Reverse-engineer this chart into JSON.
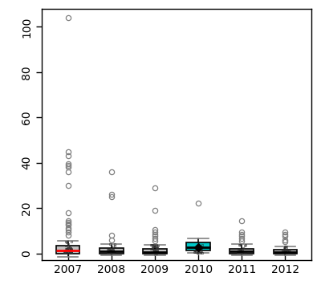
{
  "years": [
    2007,
    2008,
    2009,
    2010,
    2011,
    2012
  ],
  "ylim": [
    -3,
    108
  ],
  "yticks": [
    0,
    20,
    40,
    60,
    80,
    100
  ],
  "box_data": {
    "2007": {
      "q1": -0.3,
      "median": 1.2,
      "q3": 3.5,
      "whisker_low": -1.5,
      "whisker_high": 5.5,
      "outliers": [
        8.0,
        9.5,
        10.5,
        11.0,
        12.5,
        13.0,
        13.8,
        14.5,
        18.0,
        30.0,
        36.0,
        38.0,
        38.8,
        39.5,
        43.0,
        45.0,
        104.0
      ],
      "median_color": "#ff0000",
      "fill_color": "#c0c0c0",
      "mean": null
    },
    "2008": {
      "q1": -0.2,
      "median": 0.8,
      "q3": 2.2,
      "whisker_low": -1.0,
      "whisker_high": 4.2,
      "outliers": [
        6.0,
        8.0,
        25.0,
        26.0,
        36.0
      ],
      "median_color": "#000000",
      "fill_color": "#c0c0c0",
      "mean": null
    },
    "2009": {
      "q1": -0.2,
      "median": 0.5,
      "q3": 1.8,
      "whisker_low": -1.0,
      "whisker_high": 3.8,
      "outliers": [
        5.5,
        6.5,
        7.5,
        8.5,
        9.5,
        10.5,
        19.0,
        29.0
      ],
      "median_color": "#000000",
      "fill_color": "#c0c0c0",
      "mean": null
    },
    "2010": {
      "q1": 1.2,
      "median": 2.8,
      "q3": 4.8,
      "whisker_low": 0.2,
      "whisker_high": 6.5,
      "outliers": [
        22.0
      ],
      "median_color": "#000000",
      "fill_color": "#00c8c8",
      "mean": 2.8
    },
    "2011": {
      "q1": -0.2,
      "median": 0.8,
      "q3": 2.0,
      "whisker_low": -1.0,
      "whisker_high": 4.0,
      "outliers": [
        5.5,
        6.5,
        7.5,
        8.5,
        9.5,
        14.5
      ],
      "median_color": "#000000",
      "fill_color": "#c0c0c0",
      "mean": null
    },
    "2012": {
      "q1": -0.2,
      "median": 0.5,
      "q3": 1.5,
      "whisker_low": -1.0,
      "whisker_high": 3.0,
      "outliers": [
        5.0,
        6.0,
        7.5,
        8.5,
        9.5
      ],
      "median_color": "#000000",
      "fill_color": "#c0c0c0",
      "mean": null
    }
  },
  "box_width": 0.55,
  "background_color": "#ffffff",
  "whisker_cap_color": "#808080",
  "whisker_line_color": "#000000",
  "box_edge_color": "#000000",
  "outlier_color": "#808080",
  "dense_dot_color": "#303030"
}
